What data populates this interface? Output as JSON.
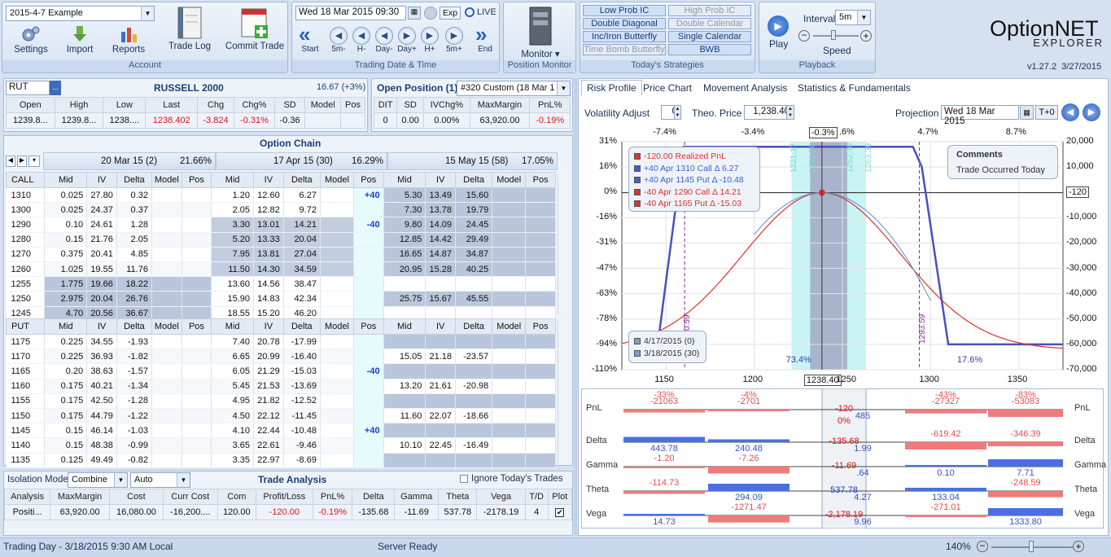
{
  "toolbar": {
    "account": {
      "select": "2015-4-7 Example",
      "buttons": [
        "Settings",
        "Import",
        "Reports",
        "Trade Log",
        "Commit Trade"
      ],
      "title": "Account"
    },
    "date": {
      "value": "Wed 18 Mar  2015 09:30",
      "exp": "Exp",
      "live": "LIVE",
      "nav": [
        "Start",
        "5m-",
        "H-",
        "Day-",
        "Day+",
        "H+",
        "5m+",
        "End"
      ],
      "title": "Trading Date & Time"
    },
    "monitor": {
      "label": "Monitor",
      "title": "Position Monitor"
    },
    "strategies": {
      "items": [
        {
          "label": "Low Prob IC",
          "enabled": true
        },
        {
          "label": "High Prob IC",
          "enabled": false
        },
        {
          "label": "Double Diagonal",
          "enabled": true
        },
        {
          "label": "Double Calendar",
          "enabled": false
        },
        {
          "label": "Inc/Iron Butterfly",
          "enabled": true
        },
        {
          "label": "Single Calendar",
          "enabled": true
        },
        {
          "label": "Time Bomb Butterfly",
          "enabled": false
        },
        {
          "label": "BWB",
          "enabled": true
        }
      ],
      "title": "Today's Strategies"
    },
    "playback": {
      "interval_label": "Interval",
      "interval": "5m",
      "play": "Play",
      "speed": "Speed",
      "title": "Playback"
    },
    "logo": {
      "line1": "Option",
      "line2": "NET",
      "line3": "EXPLORER",
      "version": "v1.27.2",
      "date": "3/27/2015"
    }
  },
  "quote": {
    "symbol": "RUT",
    "name": "RUSSELL 2000",
    "change": "16.67 (+3%)",
    "headers": [
      "Open",
      "High",
      "Low",
      "Last",
      "Chg",
      "Chg%",
      "SD",
      "Model",
      "Pos"
    ],
    "values": [
      "1239.8...",
      "1239.8...",
      "1238....",
      "1238.402",
      "-3.824",
      "-0.31%",
      "-0.36",
      "",
      ""
    ]
  },
  "open_position": {
    "title": "Open Position (1)",
    "select": "#320 Custom (18 Mar 1",
    "headers": [
      "DIT",
      "SD",
      "IVChg%",
      "MaxMargin",
      "PnL%"
    ],
    "values": [
      "0",
      "0.00",
      "0.00%",
      "63,920.00",
      "-0.19%"
    ]
  },
  "chain": {
    "title": "Option Chain",
    "expiries": [
      {
        "label": "20 Mar 15 (2)",
        "iv": "21.66%"
      },
      {
        "label": "17 Apr 15 (30)",
        "iv": "16.29%"
      },
      {
        "label": "15 May 15 (58)",
        "iv": "17.05%"
      }
    ],
    "cols": [
      "Mid",
      "IV",
      "Delta",
      "Model",
      "Pos"
    ],
    "call_label": "CALL",
    "put_label": "PUT",
    "calls": [
      [
        "1310",
        "0.025",
        "27.80",
        "0.32",
        "",
        "",
        "1.20",
        "12.60",
        "6.27",
        "",
        "+40",
        "5.30",
        "13.49",
        "15.60",
        "",
        ""
      ],
      [
        "1300",
        "0.025",
        "24.37",
        "0.37",
        "",
        "",
        "2.05",
        "12.82",
        "9.72",
        "",
        "",
        "7.30",
        "13.78",
        "19.79",
        "",
        ""
      ],
      [
        "1290",
        "0.10",
        "24.61",
        "1.28",
        "",
        "",
        "3.30",
        "13.01",
        "14.21",
        "",
        "-40",
        "9.80",
        "14.09",
        "24.45",
        "",
        ""
      ],
      [
        "1280",
        "0.15",
        "21.76",
        "2.05",
        "",
        "",
        "5.20",
        "13.33",
        "20.04",
        "",
        "",
        "12.85",
        "14.42",
        "29.49",
        "",
        ""
      ],
      [
        "1270",
        "0.375",
        "20.41",
        "4.85",
        "",
        "",
        "7.95",
        "13.81",
        "27.04",
        "",
        "",
        "16.65",
        "14.87",
        "34.87",
        "",
        ""
      ],
      [
        "1260",
        "1.025",
        "19.55",
        "11.76",
        "",
        "",
        "11.50",
        "14.30",
        "34.59",
        "",
        "",
        "20.95",
        "15.28",
        "40.25",
        "",
        ""
      ],
      [
        "1255",
        "1.775",
        "19.66",
        "18.22",
        "",
        "",
        "13.60",
        "14.56",
        "38.47",
        "",
        "",
        "",
        "",
        "",
        "",
        ""
      ],
      [
        "1250",
        "2.975",
        "20.04",
        "26.76",
        "",
        "",
        "15.90",
        "14.83",
        "42.34",
        "",
        "",
        "25.75",
        "15.67",
        "45.55",
        "",
        ""
      ],
      [
        "1245",
        "4.70",
        "20.56",
        "36.67",
        "",
        "",
        "18.55",
        "15.20",
        "46.20",
        "",
        "",
        "",
        "",
        "",
        "",
        ""
      ]
    ],
    "puts": [
      [
        "1175",
        "0.225",
        "34.55",
        "-1.93",
        "",
        "",
        "7.40",
        "20.78",
        "-17.99",
        "",
        "",
        "",
        "",
        "",
        "",
        ""
      ],
      [
        "1170",
        "0.225",
        "36.93",
        "-1.82",
        "",
        "",
        "6.65",
        "20.99",
        "-16.40",
        "",
        "",
        "15.05",
        "21.18",
        "-23.57",
        "",
        ""
      ],
      [
        "1165",
        "0.20",
        "38.63",
        "-1.57",
        "",
        "",
        "6.05",
        "21.29",
        "-15.03",
        "",
        "-40",
        "",
        "",
        "",
        "",
        ""
      ],
      [
        "1160",
        "0.175",
        "40.21",
        "-1.34",
        "",
        "",
        "5.45",
        "21.53",
        "-13.69",
        "",
        "",
        "13.20",
        "21.61",
        "-20.98",
        "",
        ""
      ],
      [
        "1155",
        "0.175",
        "42.50",
        "-1.28",
        "",
        "",
        "4.95",
        "21.82",
        "-12.52",
        "",
        "",
        "",
        "",
        "",
        "",
        ""
      ],
      [
        "1150",
        "0.175",
        "44.79",
        "-1.22",
        "",
        "",
        "4.50",
        "22.12",
        "-11.45",
        "",
        "",
        "11.60",
        "22.07",
        "-18.66",
        "",
        ""
      ],
      [
        "1145",
        "0.15",
        "46.14",
        "-1.03",
        "",
        "",
        "4.10",
        "22.44",
        "-10.48",
        "",
        "+40",
        "",
        "",
        "",
        "",
        ""
      ],
      [
        "1140",
        "0.15",
        "48.38",
        "-0.99",
        "",
        "",
        "3.65",
        "22.61",
        "-9.46",
        "",
        "",
        "10.10",
        "22.45",
        "-16.49",
        "",
        ""
      ],
      [
        "1135",
        "0.125",
        "49.49",
        "-0.82",
        "",
        "",
        "3.35",
        "22.97",
        "-8.69",
        "",
        "",
        "",
        "",
        "",
        "",
        ""
      ]
    ]
  },
  "analysis": {
    "iso_label": "Isolation Mode",
    "iso_value": "Combine",
    "auto": "Auto",
    "title": "Trade Analysis",
    "ignore": "Ignore Today's Trades",
    "headers": [
      "Analysis",
      "MaxMargin",
      "Cost",
      "Curr Cost",
      "Com",
      "Profit/Loss",
      "PnL%",
      "Delta",
      "Gamma",
      "Theta",
      "Vega",
      "T/D",
      "Plot"
    ],
    "values": [
      "Positi...",
      "63,920.00",
      "16,080.00",
      "-16,200....",
      "120.00",
      "-120.00",
      "-0.19%",
      "-135.68",
      "-11.69",
      "537.78",
      "-2178.19",
      "4",
      ""
    ]
  },
  "tabs": [
    "Risk Profile",
    "Price Chart",
    "Movement Analysis",
    "Statistics & Fundamentals"
  ],
  "risk": {
    "vol_label": "Volatility Adjust",
    "vol": "0",
    "theo_label": "Theo. Price",
    "theo": "1,238.40",
    "proj_label": "Projection",
    "proj": "Wed 18 Mar  2015",
    "t0": "T+0",
    "top_ticks": [
      "-7.4%",
      "-3.4%",
      "-0.3%",
      ".6%",
      "4.7%",
      "8.7%"
    ],
    "left_ticks": [
      "31%",
      "16%",
      "0%",
      "-16%",
      "-31%",
      "-47%",
      "-63%",
      "-78%",
      "-94%",
      "-110%"
    ],
    "right_ticks": [
      "20,000",
      "10,000",
      "-120",
      "-10,000",
      "-20,000",
      "-30,000",
      "-40,000",
      "-50,000",
      "-60,000",
      "-70,000"
    ],
    "x_ticks": [
      "1150",
      "1200",
      "1238.40",
      "1250",
      "1300",
      "1350"
    ],
    "legend": [
      {
        "t": "-120.00 Realized PnL",
        "c": "#e03030"
      },
      {
        "t": "+40 Apr 1310 Call Δ   6.27",
        "c": "#4060d0"
      },
      {
        "t": "+40 Apr 1145 Put Δ -10.48",
        "c": "#4060d0"
      },
      {
        "t": "-40 Apr 1290 Call Δ  14.21",
        "c": "#e03030"
      },
      {
        "t": "-40 Apr 1165 Put Δ -15.03",
        "c": "#e03030"
      }
    ],
    "legend2": [
      "4/17/2015 (0)",
      "3/18/2015 (30)"
    ],
    "comments_title": "Comments",
    "comments": "Trade Occurred Today",
    "vlabels": [
      "1221.17",
      "1231.70",
      "1252.70",
      "1263.39",
      "1160.59",
      "1293.59"
    ],
    "pcts": [
      "73.4%",
      "17.6%",
      "0.0%"
    ],
    "chart_data": {
      "type": "line",
      "x_range": [
        1125,
        1375
      ],
      "series": [
        {
          "name": "4/17/2015 (0)",
          "x": [
            1145,
            1160,
            1165,
            1290,
            1295,
            1310,
            1375
          ],
          "y": [
            -62000,
            18000,
            18000,
            18000,
            10000,
            -60000,
            -60000
          ]
        },
        {
          "name": "3/18/2015 (30)",
          "x": [
            1100,
            1150,
            1200,
            1238.4,
            1260,
            1300,
            1375
          ],
          "y": [
            -46000,
            -25000,
            -8000,
            -120,
            -3000,
            -25000,
            -60000
          ]
        }
      ]
    }
  },
  "greeks": {
    "rows": [
      {
        "label": "PnL",
        "top": [
          "-33%",
          "-4%",
          "",
          "-43%",
          "-83%"
        ],
        "vals": [
          "-21063",
          "-2701",
          "485",
          "-27327",
          "-53083"
        ],
        "center": "-120",
        "center2": "0%"
      },
      {
        "label": "Delta",
        "vals": [
          "443.78",
          "240.48",
          "1.99",
          "-619.42",
          "-346.39"
        ],
        "center": "-135.68"
      },
      {
        "label": "Gamma",
        "vals": [
          "-1.20",
          "-7.26",
          ".64",
          "0.10",
          "7.71"
        ],
        "center": "-11.69"
      },
      {
        "label": "Theta",
        "vals": [
          "-114.73",
          "294.09",
          "4.27",
          "133.04",
          "-248.59"
        ],
        "center": "537.78"
      },
      {
        "label": "Vega",
        "vals": [
          "14.73",
          "-1271.47",
          "9.96",
          "-271.01",
          "1333.80"
        ],
        "center": "-2,178.19"
      }
    ]
  },
  "status": {
    "left": "Trading Day - 3/18/2015 9:30 AM Local",
    "center": "Server Ready",
    "zoom": "140%"
  }
}
